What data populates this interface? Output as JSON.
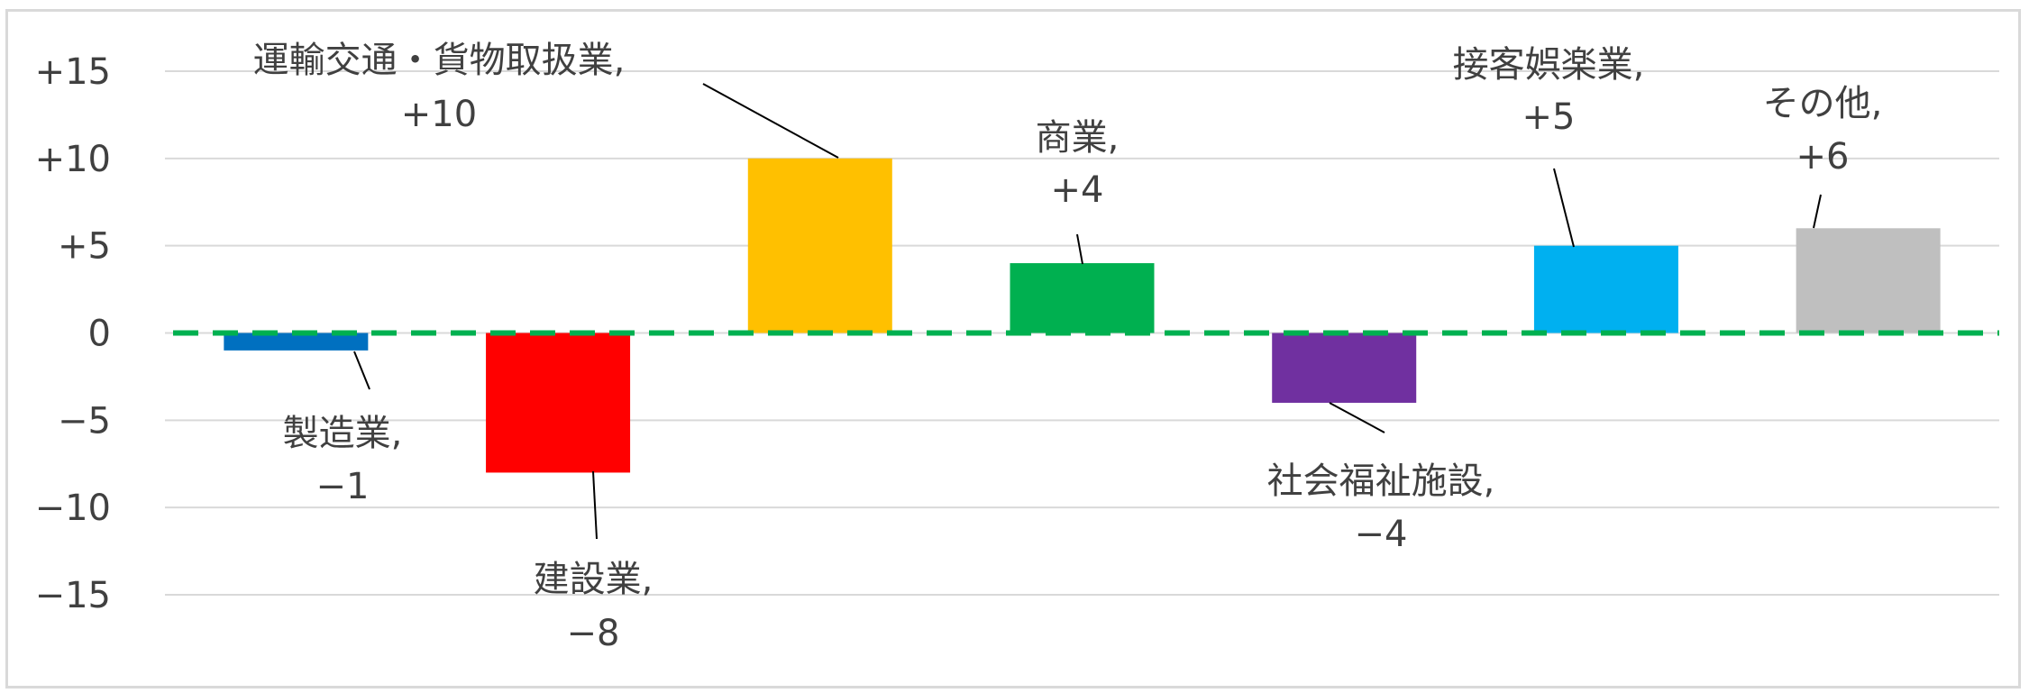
{
  "chart_data": {
    "type": "bar",
    "categories": [
      "製造業",
      "建設業",
      "運輸交通・貨物取扱業",
      "商業",
      "社会福祉施設",
      "接客娯楽業",
      "その他"
    ],
    "values": [
      -1,
      -8,
      10,
      4,
      -4,
      5,
      6
    ],
    "value_labels": [
      "−1",
      "−8",
      "+10",
      "+4",
      "−4",
      "+5",
      "+6"
    ],
    "colors": [
      "#0070c0",
      "#ff0000",
      "#ffc000",
      "#00b050",
      "#7030a0",
      "#00b0f0",
      "#bfbfbf"
    ],
    "ylim": [
      -15,
      15
    ],
    "yticks": [
      15,
      10,
      5,
      0,
      -5,
      -10,
      -15
    ],
    "ytick_labels": [
      "+15",
      "+10",
      "+5",
      "0",
      "−5",
      "−10",
      "−15"
    ],
    "grid": true,
    "zero_line": {
      "style": "dashed",
      "color": "#00b050"
    },
    "title": "",
    "xlabel": "",
    "ylabel": ""
  }
}
